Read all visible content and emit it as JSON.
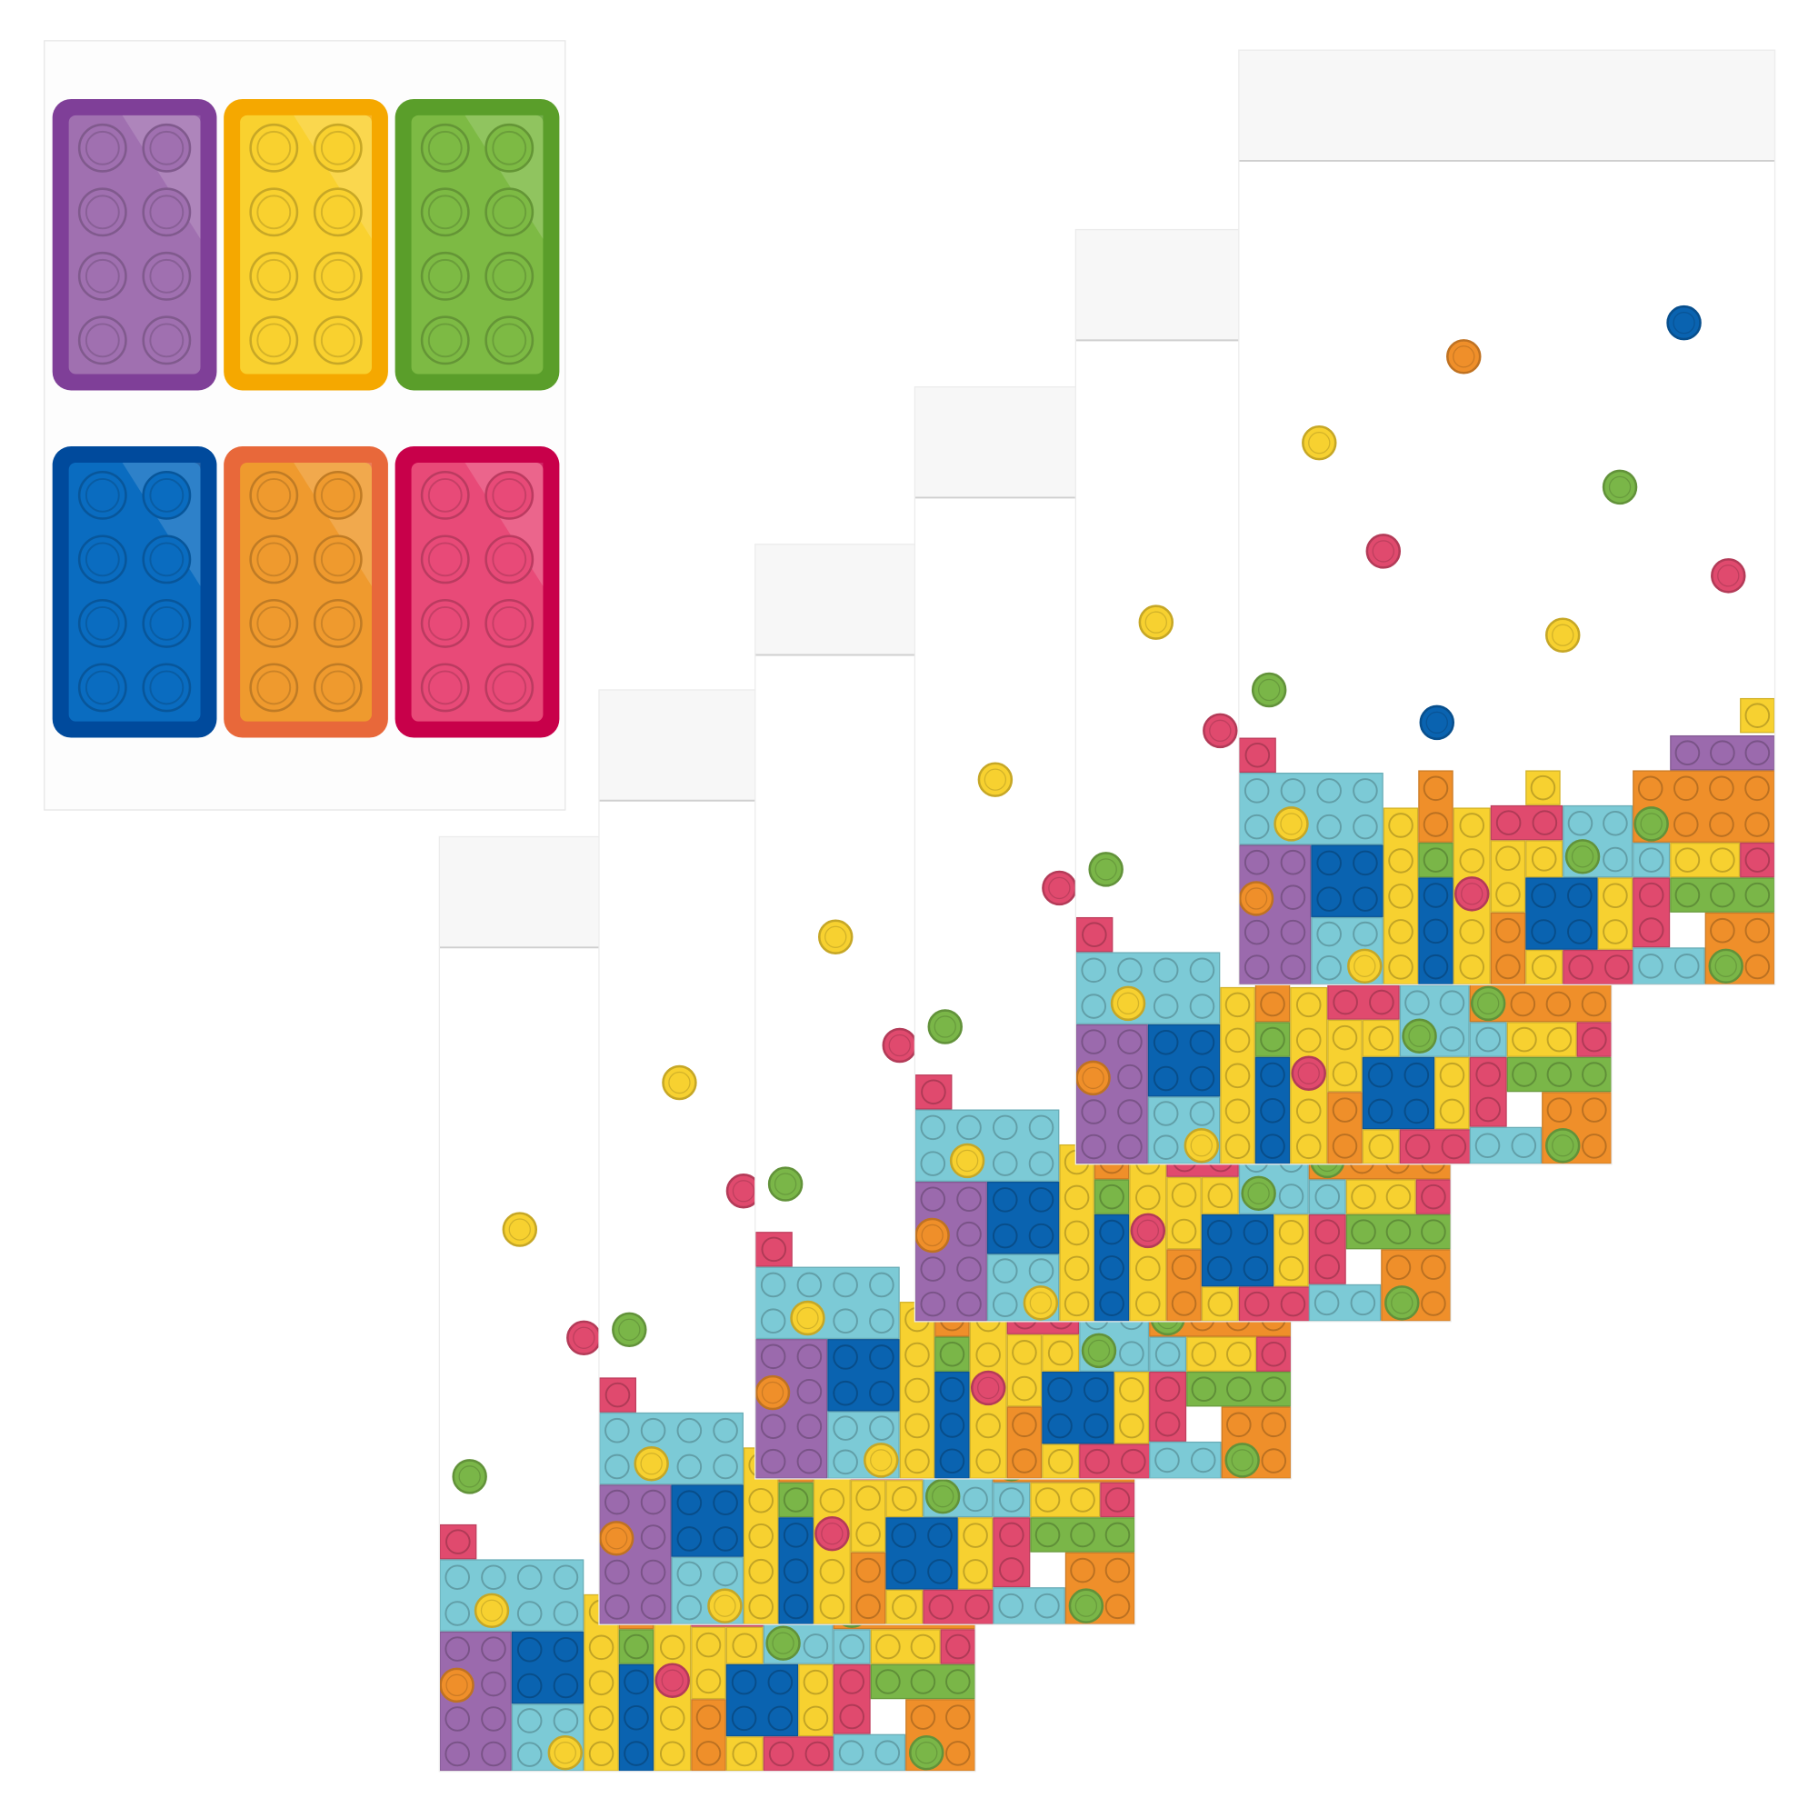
{
  "sticker_sheet": {
    "stickers": [
      {
        "color_name": "purple",
        "border": "#7f3f98",
        "fill": "#a070b0"
      },
      {
        "color_name": "yellow",
        "border": "#f5a800",
        "fill": "#f9d12f"
      },
      {
        "color_name": "green",
        "border": "#5a9e2a",
        "fill": "#7dba44"
      },
      {
        "color_name": "blue",
        "border": "#004a9c",
        "fill": "#0a6cc0"
      },
      {
        "color_name": "orange",
        "border": "#e8683a",
        "fill": "#ef9a2e"
      },
      {
        "color_name": "pink",
        "border": "#c8004a",
        "fill": "#e84a78"
      }
    ]
  },
  "bags": {
    "count": 6,
    "palette": {
      "purple": "#9b6aad",
      "yellow": "#f7d130",
      "green": "#7ab648",
      "blue": "#0a63b0",
      "orange": "#ef8f2a",
      "pink": "#e04a6e",
      "cyan": "#7ccad6"
    }
  }
}
